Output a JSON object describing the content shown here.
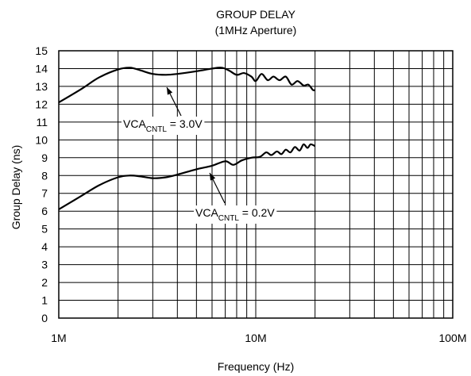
{
  "chart_data": {
    "type": "line",
    "title": "GROUP DELAY",
    "subtitle": "(1MHz Aperture)",
    "xlabel": "Frequency (Hz)",
    "ylabel": "Group Delay (ns)",
    "x_scale": "log",
    "xlim": [
      1000000,
      100000000
    ],
    "ylim": [
      0,
      15
    ],
    "x_tick_labels": [
      "1M",
      "10M",
      "100M"
    ],
    "y_ticks": [
      0,
      1,
      2,
      3,
      4,
      5,
      6,
      7,
      8,
      9,
      10,
      11,
      12,
      13,
      14,
      15
    ],
    "grid": true,
    "series": [
      {
        "name": "VCA",
        "label_sub": "CNTL",
        "label_suffix": " = 3.0V",
        "x": [
          1000000,
          1300000,
          1600000,
          2000000,
          2300000,
          2600000,
          3000000,
          3500000,
          4000000,
          5000000,
          6000000,
          6700000,
          7300000,
          8000000,
          8700000,
          9500000,
          10000000,
          10700000,
          11500000,
          12300000,
          13200000,
          14200000,
          15200000,
          16300000,
          17500000,
          18500000,
          19500000,
          20000000
        ],
        "values": [
          12.1,
          12.85,
          13.5,
          13.95,
          14.05,
          13.9,
          13.7,
          13.65,
          13.7,
          13.85,
          14.0,
          14.05,
          13.9,
          13.65,
          13.75,
          13.55,
          13.3,
          13.7,
          13.35,
          13.55,
          13.35,
          13.55,
          13.1,
          13.3,
          13.05,
          13.1,
          12.8,
          12.8
        ]
      },
      {
        "name": "VCA",
        "label_sub": "CNTL",
        "label_suffix": " = 0.2V",
        "x": [
          1000000,
          1300000,
          1600000,
          2000000,
          2300000,
          2600000,
          3000000,
          3500000,
          4000000,
          5000000,
          6000000,
          7000000,
          7700000,
          8500000,
          9500000,
          10500000,
          11300000,
          12000000,
          12800000,
          13500000,
          14200000,
          15000000,
          15800000,
          16700000,
          17500000,
          18300000,
          19000000,
          20000000
        ],
        "values": [
          6.1,
          6.85,
          7.45,
          7.9,
          8.0,
          7.95,
          7.85,
          7.9,
          8.05,
          8.35,
          8.55,
          8.8,
          8.6,
          8.85,
          9.0,
          9.05,
          9.3,
          9.15,
          9.35,
          9.2,
          9.45,
          9.3,
          9.6,
          9.4,
          9.75,
          9.55,
          9.75,
          9.65
        ]
      }
    ]
  }
}
